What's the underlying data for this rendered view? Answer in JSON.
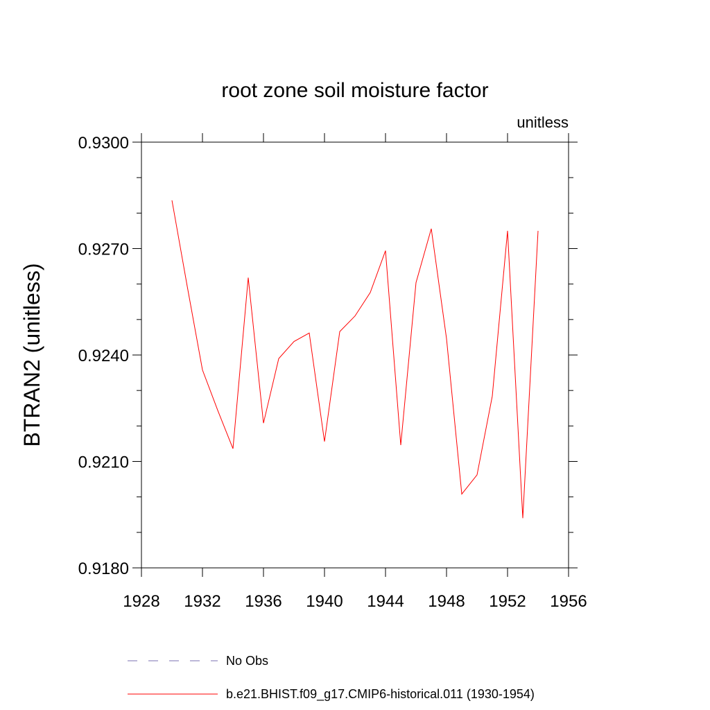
{
  "chart_data": {
    "type": "line",
    "title": "root zone soil moisture factor",
    "units_label": "unitless",
    "xlabel": "",
    "ylabel": "BTRAN2  (unitless)",
    "xlim": [
      1928,
      1956
    ],
    "ylim": [
      0.918,
      0.93
    ],
    "x_ticks": [
      1928,
      1932,
      1936,
      1940,
      1944,
      1948,
      1952,
      1956
    ],
    "y_ticks": [
      0.918,
      0.921,
      0.924,
      0.927,
      0.93
    ],
    "y_tick_labels": [
      "0.9180",
      "0.9210",
      "0.9240",
      "0.9270",
      "0.9300"
    ],
    "grid": false,
    "legend_position": "bottom",
    "series": [
      {
        "name": "No Obs",
        "color": "#7a6fb0",
        "dash": "dashed",
        "x": [],
        "values": []
      },
      {
        "name": "b.e21.BHIST.f09_g17.CMIP6-historical.011 (1930-1954)",
        "color": "#ff0000",
        "dash": "solid",
        "x": [
          1930,
          1931,
          1932,
          1933,
          1934,
          1935,
          1936,
          1937,
          1938,
          1939,
          1940,
          1941,
          1942,
          1943,
          1944,
          1945,
          1946,
          1947,
          1948,
          1949,
          1950,
          1951,
          1952,
          1953,
          1954
        ],
        "values": [
          0.92836,
          0.92594,
          0.92358,
          0.92244,
          0.92136,
          0.92618,
          0.92208,
          0.9239,
          0.92438,
          0.92462,
          0.92156,
          0.92466,
          0.9251,
          0.92576,
          0.92694,
          0.92146,
          0.92604,
          0.92756,
          0.92446,
          0.92008,
          0.92062,
          0.92284,
          0.9275,
          0.9194,
          0.9275
        ]
      }
    ]
  }
}
